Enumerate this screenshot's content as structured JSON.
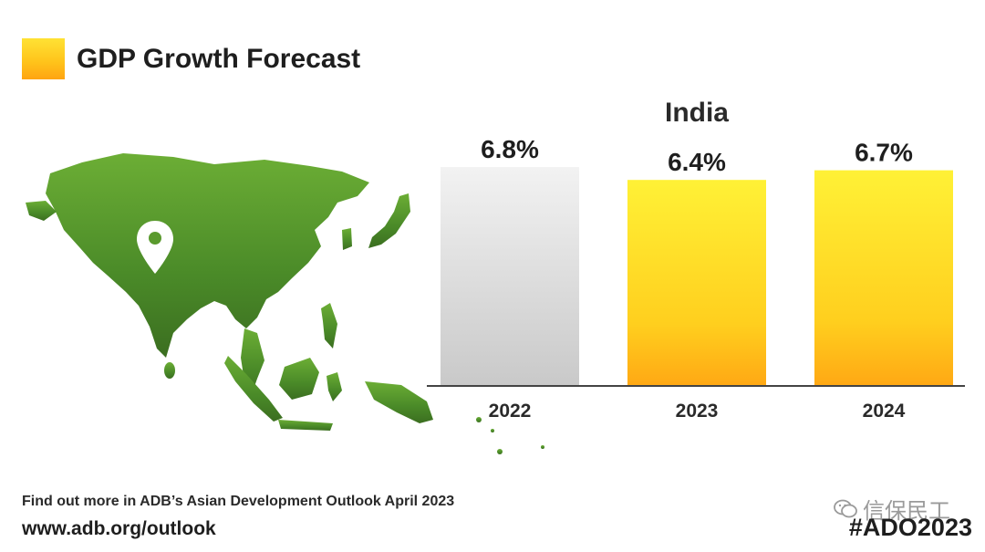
{
  "header": {
    "title": "GDP Growth Forecast",
    "swatch_color": "#ffc21a"
  },
  "chart_data": {
    "type": "bar",
    "subtitle": "India",
    "categories": [
      "2022",
      "2023",
      "2024"
    ],
    "values": [
      6.8,
      6.4,
      6.7
    ],
    "value_labels": [
      "6.8%",
      "6.4%",
      "6.7%"
    ],
    "bar_colors": [
      "#d4d4d4",
      "#ffcc1e",
      "#ffcc1e"
    ],
    "ylim": [
      0,
      7
    ],
    "grid": false
  },
  "map": {
    "icon": "asia-map",
    "marker": "location-pin-icon",
    "color": "#5a9a2e"
  },
  "footer": {
    "line1": "Find out more in ADB’s Asian Development Outlook April 2023",
    "url": "www.adb.org/outlook",
    "hashtag": "#ADO2023",
    "watermark": "信保民工"
  }
}
